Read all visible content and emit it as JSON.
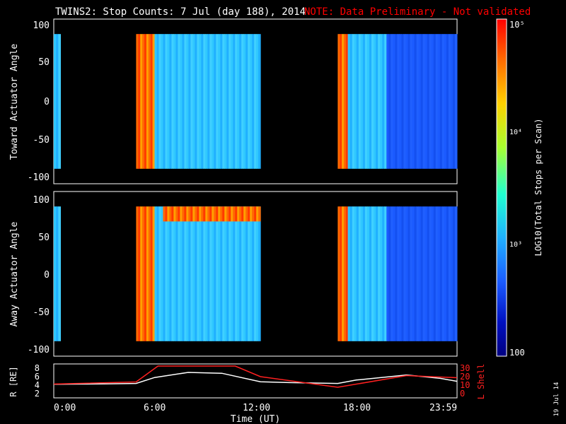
{
  "header": {
    "title": "TWINS2: Stop Counts:  7 Jul (day 188), 2014",
    "note": "NOTE: Data Preliminary - Not validated"
  },
  "side_date": "19 Jul 14",
  "colors": {
    "background": "#000000",
    "note": "#ff0000",
    "axes": "#ffffff",
    "lshell": "#ff2020",
    "r_trace": "#ffffff"
  },
  "chart_data": [
    {
      "type": "heatmap",
      "name": "Toward Actuator Angle panel",
      "ylabel": "Toward Actuator Angle",
      "y_ticks": [
        "100",
        "50",
        "0",
        "-50",
        "-100"
      ],
      "ylim": [
        -110,
        110
      ],
      "xlim": [
        0,
        24
      ],
      "data_blocks": [
        {
          "t0": 0.0,
          "t1": 0.4,
          "angle0": -90,
          "angle1": 90,
          "level": "mid"
        },
        {
          "t0": 4.9,
          "t1": 6.0,
          "angle0": -90,
          "angle1": 90,
          "level": "high"
        },
        {
          "t0": 6.0,
          "t1": 12.3,
          "angle0": -90,
          "angle1": 90,
          "level": "mid"
        },
        {
          "t0": 16.9,
          "t1": 17.5,
          "angle0": -90,
          "angle1": 90,
          "level": "high"
        },
        {
          "t0": 17.5,
          "t1": 19.8,
          "angle0": -90,
          "angle1": 90,
          "level": "mid"
        },
        {
          "t0": 19.8,
          "t1": 24.0,
          "angle0": -90,
          "angle1": 90,
          "level": "low"
        }
      ]
    },
    {
      "type": "heatmap",
      "name": "Away Actuator Angle panel",
      "ylabel": "Away Actuator Angle",
      "y_ticks": [
        "100",
        "50",
        "0",
        "-50",
        "-100"
      ],
      "ylim": [
        -110,
        110
      ],
      "xlim": [
        0,
        24
      ],
      "data_blocks": [
        {
          "t0": 0.0,
          "t1": 0.4,
          "angle0": -90,
          "angle1": 90,
          "level": "mid"
        },
        {
          "t0": 4.9,
          "t1": 6.0,
          "angle0": -90,
          "angle1": 90,
          "level": "high"
        },
        {
          "t0": 6.0,
          "t1": 12.3,
          "angle0": -90,
          "angle1": 90,
          "level": "mid"
        },
        {
          "t0": 6.5,
          "t1": 12.3,
          "angle0": 70,
          "angle1": 90,
          "level": "high"
        },
        {
          "t0": 16.9,
          "t1": 17.5,
          "angle0": -90,
          "angle1": 90,
          "level": "high"
        },
        {
          "t0": 17.5,
          "t1": 19.8,
          "angle0": -90,
          "angle1": 90,
          "level": "mid"
        },
        {
          "t0": 19.8,
          "t1": 24.0,
          "angle0": -90,
          "angle1": 90,
          "level": "low"
        }
      ]
    },
    {
      "type": "line",
      "name": "Orbit panel",
      "xlabel": "Time (UT)",
      "x_ticks": [
        {
          "t": 0,
          "label": "0:00"
        },
        {
          "t": 6,
          "label": "6:00"
        },
        {
          "t": 12,
          "label": "12:00"
        },
        {
          "t": 18,
          "label": "18:00"
        },
        {
          "t": 24,
          "label": "23:59"
        }
      ],
      "ylabel_left": "R [RE]",
      "ylabel_right": "L Shell",
      "left_ticks": [
        "8",
        "6",
        "4",
        "2"
      ],
      "right_ticks": [
        "30",
        "20",
        "10",
        "0"
      ],
      "r_series": [
        [
          0,
          4.2
        ],
        [
          3,
          4.3
        ],
        [
          4.9,
          4.4
        ],
        [
          6,
          5.8
        ],
        [
          8,
          7.0
        ],
        [
          10,
          6.8
        ],
        [
          12.3,
          4.8
        ],
        [
          14,
          4.6
        ],
        [
          16.9,
          4.4
        ],
        [
          18,
          5.2
        ],
        [
          21,
          6.4
        ],
        [
          23,
          5.6
        ],
        [
          24,
          4.9
        ]
      ],
      "lshell_series": [
        [
          0,
          13
        ],
        [
          4.9,
          15
        ],
        [
          6.2,
          30
        ],
        [
          10.8,
          30
        ],
        [
          12.3,
          20
        ],
        [
          16.9,
          10
        ],
        [
          21,
          21
        ],
        [
          24,
          19
        ]
      ]
    }
  ],
  "colorbar": {
    "label": "LOG10(Total Stops per Scan)",
    "ticks": [
      {
        "label": "10⁵",
        "value": 100000
      },
      {
        "label": "10⁴",
        "value": 10000
      },
      {
        "label": "10³",
        "value": 1000
      },
      {
        "label": "100",
        "value": 100
      }
    ],
    "colors": [
      "#ff0000",
      "#ff6a00",
      "#ffd000",
      "#a8ff30",
      "#20ffd0",
      "#20b0ff",
      "#1b5bff",
      "#0010c0",
      "#000080"
    ]
  }
}
